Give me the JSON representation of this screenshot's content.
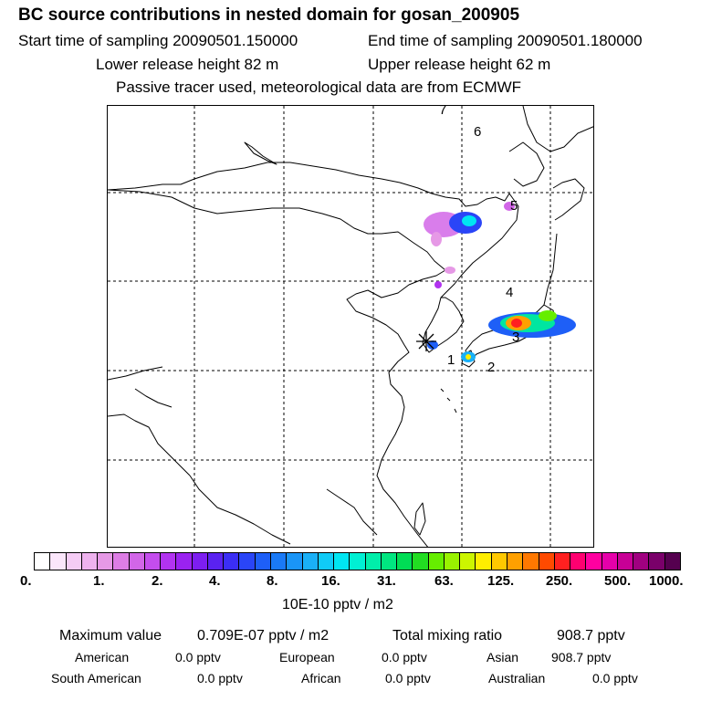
{
  "header": {
    "title": "BC  source contributions in nested domain for gosan_200905",
    "start_time": "Start time of sampling 20090501.150000",
    "end_time": "End time of sampling 20090501.180000",
    "lower_height": "Lower release height   82 m",
    "upper_height": "Upper release height   62 m",
    "note": "Passive tracer used, meteorological data are from ECMWF"
  },
  "map": {
    "source_labels": [
      "1",
      "2",
      "3",
      "4",
      "5",
      "6",
      "7"
    ],
    "receptor_marker": "receptor-star",
    "grid": "dashed"
  },
  "colorbar": {
    "colors": [
      "#ffffff",
      "#fbe6fb",
      "#f5ccf5",
      "#eeb2ee",
      "#e699e6",
      "#dd7de5",
      "#d266e8",
      "#c44ded",
      "#b233f0",
      "#9a22f0",
      "#7d1ef0",
      "#5a22f0",
      "#3b2ef5",
      "#2a45f7",
      "#1e5ff7",
      "#1a7af7",
      "#1a95f7",
      "#1ab0f7",
      "#10cbf7",
      "#00e6f2",
      "#00f0d4",
      "#00eeaa",
      "#00e680",
      "#00dd55",
      "#22dd22",
      "#66ee00",
      "#99f200",
      "#ccf500",
      "#ffee00",
      "#ffc800",
      "#ffa000",
      "#ff7800",
      "#ff4a00",
      "#ff2020",
      "#ff0070",
      "#ff00a0",
      "#e600aa",
      "#c80096",
      "#a00080",
      "#7a006a",
      "#55004f"
    ],
    "tick_labels": [
      "0.",
      "1.",
      "2.",
      "4.",
      "8.",
      "16.",
      "31.",
      "63.",
      "125.",
      "250.",
      "500.",
      "1000."
    ],
    "unit": "10E-10 pptv / m2"
  },
  "stats": {
    "max_label": "Maximum value",
    "max_value": "0.709E-07 pptv / m2",
    "total_label": "Total mixing ratio",
    "total_value": "908.7 pptv",
    "regions": [
      {
        "name": "American",
        "value": "0.0 pptv"
      },
      {
        "name": "European",
        "value": "0.0 pptv"
      },
      {
        "name": "Asian",
        "value": "908.7 pptv"
      },
      {
        "name": "South American",
        "value": "0.0 pptv"
      },
      {
        "name": "African",
        "value": "0.0 pptv"
      },
      {
        "name": "Australian",
        "value": "0.0 pptv"
      }
    ]
  }
}
